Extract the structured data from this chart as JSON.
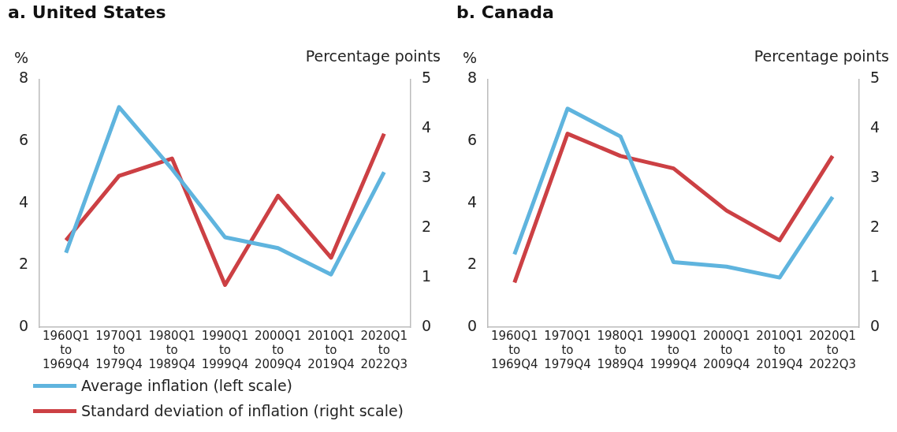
{
  "chart_data": [
    {
      "type": "line",
      "title": "a. United States",
      "ylabel": "%",
      "y2label": "Percentage points",
      "categories": [
        "1960Q1 to 1969Q4",
        "1970Q1 to 1979Q4",
        "1980Q1 to 1989Q4",
        "1990Q1 to 1999Q4",
        "2000Q1 to 2009Q4",
        "2010Q1 to 2019Q4",
        "2020Q1 to 2022Q3"
      ],
      "series": [
        {
          "name": "Average inflation (left scale)",
          "color": "#5fb4de",
          "values": [
            2.4,
            7.1,
            5.1,
            2.9,
            2.55,
            1.7,
            5.0
          ]
        },
        {
          "name": "Standard deviation of inflation (right scale)",
          "color": "#cc4044",
          "axis": "y2",
          "values": [
            1.75,
            3.05,
            3.4,
            0.85,
            2.65,
            1.4,
            3.9
          ]
        }
      ],
      "ylim": [
        0,
        8
      ],
      "yticks": [
        0,
        2,
        4,
        6,
        8
      ],
      "y2lim": [
        0,
        5
      ],
      "y2ticks": [
        0,
        1,
        2,
        3,
        4,
        5
      ],
      "grid": false,
      "legend": "bottom"
    },
    {
      "type": "line",
      "title": "b. Canada",
      "ylabel": "%",
      "y2label": "Percentage points",
      "categories": [
        "1960Q1 to 1969Q4",
        "1970Q1 to 1979Q4",
        "1980Q1 to 1989Q4",
        "1990Q1 to 1999Q4",
        "2000Q1 to 2009Q4",
        "2010Q1 to 2019Q4",
        "2020Q1 to 2022Q3"
      ],
      "series": [
        {
          "color": "#5fb4de",
          "values": [
            2.35,
            7.05,
            6.15,
            2.1,
            1.95,
            1.6,
            4.2
          ]
        },
        {
          "color": "#cc4044",
          "axis": "y2",
          "values": [
            0.9,
            3.9,
            3.45,
            3.2,
            2.35,
            1.75,
            3.45
          ]
        }
      ],
      "ylim": [
        0,
        8
      ],
      "yticks": [
        0,
        2,
        4,
        6,
        8
      ],
      "y2lim": [
        0,
        5
      ],
      "y2ticks": [
        0,
        1,
        2,
        3,
        4,
        5
      ],
      "grid": false,
      "legend": false
    }
  ]
}
